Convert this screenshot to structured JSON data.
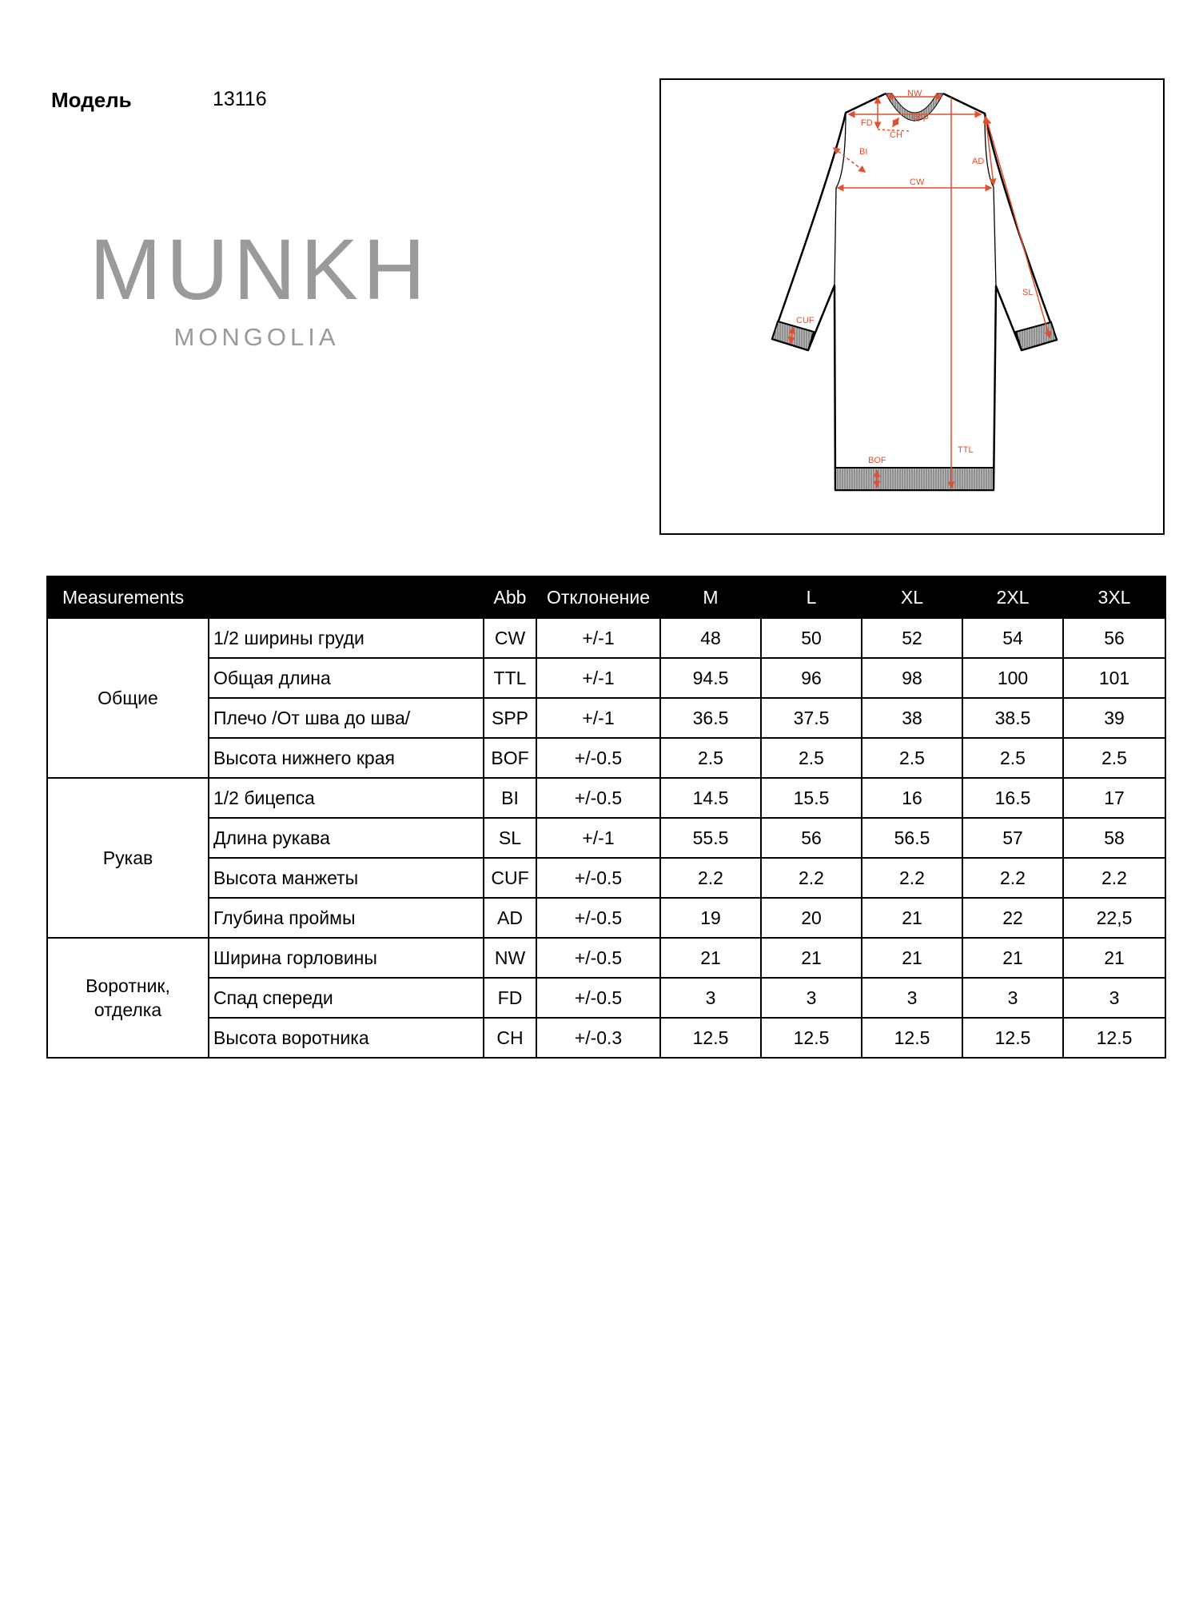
{
  "header": {
    "model_label": "Модель",
    "model_value": "13116"
  },
  "logo": {
    "main": "MUNKH",
    "sub": "MONGOLIA"
  },
  "diagram": {
    "accent_color": "#e0502f",
    "labels": {
      "NW": "NW",
      "SPP": "SPP",
      "FD": "FD",
      "CH": "CH",
      "BI": "BI",
      "AD": "AD",
      "CW": "CW",
      "SL": "SL",
      "CUF": "CUF",
      "TTL": "TTL",
      "BOF": "BOF"
    }
  },
  "table": {
    "headers": {
      "measurements": "Measurements",
      "abb": "Abb",
      "tolerance": "Отклонение",
      "sizes": [
        "M",
        "L",
        "XL",
        "2XL",
        "3XL"
      ]
    },
    "groups": [
      {
        "name": "Общие",
        "rows": [
          {
            "name": "1/2 ширины груди",
            "abb": "CW",
            "tol": "+/-1",
            "values": [
              "48",
              "50",
              "52",
              "54",
              "56"
            ]
          },
          {
            "name": "Общая длина",
            "abb": "TTL",
            "tol": "+/-1",
            "values": [
              "94.5",
              "96",
              "98",
              "100",
              "101"
            ]
          },
          {
            "name": "Плечо /От шва до шва/",
            "abb": "SPP",
            "tol": "+/-1",
            "values": [
              "36.5",
              "37.5",
              "38",
              "38.5",
              "39"
            ]
          },
          {
            "name": "Высота нижнего края",
            "abb": "BOF",
            "tol": "+/-0.5",
            "values": [
              "2.5",
              "2.5",
              "2.5",
              "2.5",
              "2.5"
            ]
          }
        ]
      },
      {
        "name": "Рукав",
        "rows": [
          {
            "name": "1/2 бицепса",
            "abb": "BI",
            "tol": "+/-0.5",
            "values": [
              "14.5",
              "15.5",
              "16",
              "16.5",
              "17"
            ]
          },
          {
            "name": "Длина рукава",
            "abb": "SL",
            "tol": "+/-1",
            "values": [
              "55.5",
              "56",
              "56.5",
              "57",
              "58"
            ]
          },
          {
            "name": "Высота манжеты",
            "abb": "CUF",
            "tol": "+/-0.5",
            "values": [
              "2.2",
              "2.2",
              "2.2",
              "2.2",
              "2.2"
            ]
          },
          {
            "name": "Глубина проймы",
            "abb": "AD",
            "tol": "+/-0.5",
            "values": [
              "19",
              "20",
              "21",
              "22",
              "22,5"
            ]
          }
        ]
      },
      {
        "name": "Воротник, отделка",
        "rows": [
          {
            "name": "Ширина горловины",
            "abb": "NW",
            "tol": "+/-0.5",
            "values": [
              "21",
              "21",
              "21",
              "21",
              "21"
            ]
          },
          {
            "name": "Спад спереди",
            "abb": "FD",
            "tol": "+/-0.5",
            "values": [
              "3",
              "3",
              "3",
              "3",
              "3"
            ]
          },
          {
            "name": "Высота воротника",
            "abb": "CH",
            "tol": "+/-0.3",
            "values": [
              "12.5",
              "12.5",
              "12.5",
              "12.5",
              "12.5"
            ]
          }
        ]
      }
    ]
  }
}
